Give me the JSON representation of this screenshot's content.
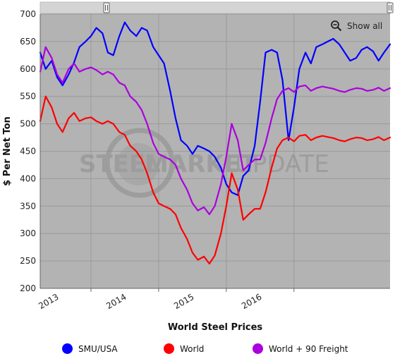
{
  "colors": {
    "plot_bg": "#b3b3b3",
    "grid": "#9a9a9a",
    "watermark": "#8c8c8c",
    "smu": "#0000ff",
    "world": "#ff0000",
    "world90": "#aa00dd"
  },
  "icons": {
    "zoom_reset": "zoom-out-magnifier-icon",
    "range_handle": "range-handle-icon"
  },
  "labels": {
    "show_all": "Show all",
    "watermark_left": "STEEL",
    "watermark_mid": "MARKET",
    "watermark_right": "UPDATE"
  },
  "chart_data": {
    "type": "line",
    "title": "",
    "xlabel": "World Steel Prices",
    "ylabel": "$ Per Net Ton",
    "ylim": [
      200,
      700
    ],
    "yticks": [
      200,
      250,
      300,
      350,
      400,
      450,
      500,
      550,
      600,
      650,
      700
    ],
    "xlim": [
      2012.25,
      2017.42
    ],
    "xticks": [
      {
        "label": "2013",
        "x": 2013.0
      },
      {
        "label": "2014",
        "x": 2014.0
      },
      {
        "label": "2015",
        "x": 2015.0
      },
      {
        "label": "2016",
        "x": 2016.0
      }
    ],
    "grid": true,
    "legend_position": "bottom",
    "series": [
      {
        "name": "SMU/USA",
        "color_key": "smu",
        "x": [
          2012.25,
          2012.33,
          2012.42,
          2012.5,
          2012.58,
          2012.67,
          2012.75,
          2012.83,
          2012.92,
          2013.0,
          2013.08,
          2013.17,
          2013.25,
          2013.33,
          2013.42,
          2013.5,
          2013.58,
          2013.67,
          2013.75,
          2013.83,
          2013.92,
          2014.0,
          2014.08,
          2014.17,
          2014.25,
          2014.33,
          2014.42,
          2014.5,
          2014.58,
          2014.67,
          2014.75,
          2014.83,
          2014.92,
          2015.0,
          2015.08,
          2015.17,
          2015.25,
          2015.33,
          2015.42,
          2015.5,
          2015.58,
          2015.67,
          2015.75,
          2015.83,
          2015.92,
          2016.0,
          2016.08,
          2016.17,
          2016.25,
          2016.33,
          2016.42,
          2016.5,
          2016.58,
          2016.67,
          2016.75,
          2016.83,
          2016.92,
          2017.0,
          2017.08,
          2017.17,
          2017.25,
          2017.33,
          2017.42
        ],
        "values": [
          630,
          600,
          615,
          585,
          570,
          590,
          612,
          640,
          650,
          660,
          675,
          665,
          630,
          625,
          660,
          685,
          670,
          660,
          675,
          670,
          640,
          625,
          610,
          560,
          510,
          470,
          460,
          445,
          460,
          455,
          450,
          440,
          420,
          390,
          375,
          370,
          405,
          415,
          460,
          540,
          630,
          635,
          630,
          580,
          470,
          530,
          600,
          630,
          610,
          640,
          645,
          650,
          655,
          645,
          630,
          615,
          620,
          635,
          640,
          632,
          615,
          630,
          645
        ]
      },
      {
        "name": "World",
        "color_key": "world",
        "x": [
          2012.25,
          2012.33,
          2012.42,
          2012.5,
          2012.58,
          2012.67,
          2012.75,
          2012.83,
          2012.92,
          2013.0,
          2013.08,
          2013.17,
          2013.25,
          2013.33,
          2013.42,
          2013.5,
          2013.58,
          2013.67,
          2013.75,
          2013.83,
          2013.92,
          2014.0,
          2014.08,
          2014.17,
          2014.25,
          2014.33,
          2014.42,
          2014.5,
          2014.58,
          2014.67,
          2014.75,
          2014.83,
          2014.92,
          2015.0,
          2015.08,
          2015.17,
          2015.25,
          2015.33,
          2015.42,
          2015.5,
          2015.58,
          2015.67,
          2015.75,
          2015.83,
          2015.92,
          2016.0,
          2016.08,
          2016.17,
          2016.25,
          2016.33,
          2016.42,
          2016.5,
          2016.58,
          2016.67,
          2016.75,
          2016.83,
          2016.92,
          2017.0,
          2017.08,
          2017.17,
          2017.25,
          2017.33,
          2017.42
        ],
        "values": [
          505,
          550,
          530,
          500,
          485,
          510,
          520,
          505,
          510,
          512,
          505,
          500,
          505,
          500,
          485,
          480,
          460,
          450,
          435,
          410,
          375,
          355,
          350,
          345,
          335,
          310,
          290,
          265,
          252,
          258,
          245,
          260,
          300,
          350,
          410,
          380,
          325,
          335,
          345,
          345,
          375,
          420,
          455,
          470,
          475,
          468,
          478,
          480,
          470,
          475,
          478,
          476,
          474,
          470,
          468,
          472,
          475,
          474,
          470,
          472,
          476,
          470,
          475
        ]
      },
      {
        "name": "World + 90 Freight",
        "color_key": "world90",
        "x": [
          2012.25,
          2012.33,
          2012.42,
          2012.5,
          2012.58,
          2012.67,
          2012.75,
          2012.83,
          2012.92,
          2013.0,
          2013.08,
          2013.17,
          2013.25,
          2013.33,
          2013.42,
          2013.5,
          2013.58,
          2013.67,
          2013.75,
          2013.83,
          2013.92,
          2014.0,
          2014.08,
          2014.17,
          2014.25,
          2014.33,
          2014.42,
          2014.5,
          2014.58,
          2014.67,
          2014.75,
          2014.83,
          2014.92,
          2015.0,
          2015.08,
          2015.17,
          2015.25,
          2015.33,
          2015.42,
          2015.5,
          2015.58,
          2015.67,
          2015.75,
          2015.83,
          2015.92,
          2016.0,
          2016.08,
          2016.17,
          2016.25,
          2016.33,
          2016.42,
          2016.5,
          2016.58,
          2016.67,
          2016.75,
          2016.83,
          2016.92,
          2017.0,
          2017.08,
          2017.17,
          2017.25,
          2017.33,
          2017.42
        ],
        "values": [
          595,
          640,
          620,
          590,
          575,
          600,
          610,
          595,
          600,
          603,
          598,
          590,
          595,
          590,
          575,
          570,
          550,
          540,
          525,
          500,
          465,
          445,
          440,
          435,
          425,
          400,
          380,
          355,
          342,
          348,
          335,
          350,
          390,
          440,
          500,
          470,
          415,
          425,
          435,
          435,
          465,
          510,
          545,
          560,
          565,
          558,
          568,
          570,
          560,
          565,
          568,
          566,
          564,
          560,
          558,
          562,
          565,
          564,
          560,
          562,
          566,
          560,
          565
        ]
      }
    ]
  }
}
